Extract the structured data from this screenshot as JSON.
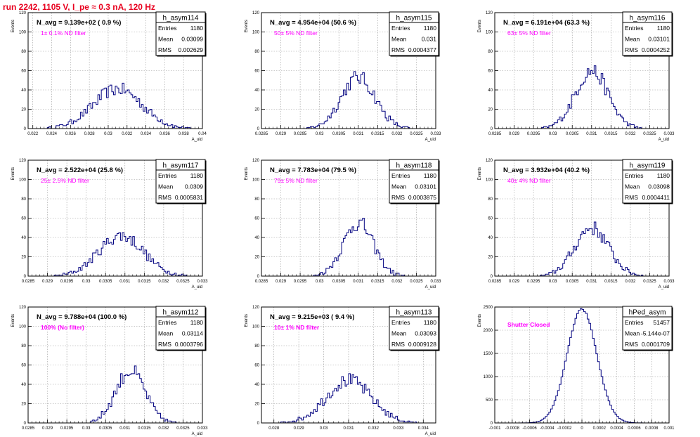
{
  "canvas_title": "run 2242,  1105 V, I_pe ≈ 0.3 nA, 120 Hz",
  "colors": {
    "hist": "#00007f",
    "magenta": "#ff00ff",
    "title": "#e8001e",
    "grid": "#9a9a9a"
  },
  "chart_data": [
    {
      "type": "bar",
      "hist_name": "h_asym114",
      "navg": "N_avg = 9.139e+02 ( 0.9 %)",
      "filter": "1± 0.1% ND filter",
      "stats": [
        [
          "Entries",
          "1180"
        ],
        [
          "Mean",
          "0.03099"
        ],
        [
          "RMS",
          "0.002629"
        ]
      ],
      "ylabel": "Events",
      "xlabel": "A_uid",
      "xlim": [
        0.0215,
        0.04
      ],
      "ylim": [
        0,
        120
      ],
      "xticks": [
        "0.022",
        "0.024",
        "0.026",
        "0.028",
        "0.03",
        "0.032",
        "0.034",
        "0.036",
        "0.038",
        "0.04"
      ],
      "yticks": [
        "0",
        "20",
        "40",
        "60",
        "80",
        "100",
        "120"
      ],
      "peak": {
        "mu": 0.031,
        "sigma": 0.0026,
        "max": 41
      }
    },
    {
      "type": "bar",
      "hist_name": "h_asym115",
      "navg": "N_avg = 4.954e+04 (50.6 %)",
      "filter": "50± 5% ND filter",
      "stats": [
        [
          "Entries",
          "1180"
        ],
        [
          "Mean",
          "0.031"
        ],
        [
          "RMS",
          "0.0004377"
        ]
      ],
      "ylabel": "Events",
      "xlabel": "A_uid",
      "xlim": [
        0.0285,
        0.033
      ],
      "ylim": [
        0,
        120
      ],
      "xticks": [
        "0.0285",
        "0.029",
        "0.0295",
        "0.03",
        "0.0305",
        "0.031",
        "0.0315",
        "0.032",
        "0.0325",
        "0.033"
      ],
      "yticks": [
        "0",
        "20",
        "40",
        "60",
        "80",
        "100",
        "120"
      ],
      "peak": {
        "mu": 0.031,
        "sigma": 0.00044,
        "max": 53
      }
    },
    {
      "type": "bar",
      "hist_name": "h_asym116",
      "navg": "N_avg = 6.191e+04 (63.3 %)",
      "filter": "63± 5% ND filter",
      "stats": [
        [
          "Entries",
          "1180"
        ],
        [
          "Mean",
          "0.03101"
        ],
        [
          "RMS",
          "0.0004252"
        ]
      ],
      "ylabel": "Events",
      "xlabel": "A_uid",
      "xlim": [
        0.0285,
        0.033
      ],
      "ylim": [
        0,
        120
      ],
      "xticks": [
        "0.0285",
        "0.029",
        "0.0295",
        "0.03",
        "0.0305",
        "0.031",
        "0.0315",
        "0.032",
        "0.0325",
        "0.033"
      ],
      "yticks": [
        "0",
        "20",
        "40",
        "60",
        "80",
        "100",
        "120"
      ],
      "peak": {
        "mu": 0.031,
        "sigma": 0.00042,
        "max": 60
      }
    },
    {
      "type": "bar",
      "hist_name": "h_asym117",
      "navg": "N_avg = 2.522e+04 (25.8 %)",
      "filter": "25± 2.5% ND filter",
      "stats": [
        [
          "Entries",
          "1180"
        ],
        [
          "Mean",
          "0.0309"
        ],
        [
          "RMS",
          "0.0005831"
        ]
      ],
      "ylabel": "Events",
      "xlabel": "A_uid",
      "xlim": [
        0.0285,
        0.033
      ],
      "ylim": [
        0,
        120
      ],
      "xticks": [
        "0.0285",
        "0.029",
        "0.0295",
        "0.03",
        "0.0305",
        "0.031",
        "0.0315",
        "0.032",
        "0.0325",
        "0.033"
      ],
      "yticks": [
        "0",
        "20",
        "40",
        "60",
        "80",
        "100",
        "120"
      ],
      "peak": {
        "mu": 0.0309,
        "sigma": 0.00058,
        "max": 42
      }
    },
    {
      "type": "bar",
      "hist_name": "h_asym118",
      "navg": "N_avg = 7.783e+04 (79.5 %)",
      "filter": "79± 5% ND filter",
      "stats": [
        [
          "Entries",
          "1180"
        ],
        [
          "Mean",
          "0.03101"
        ],
        [
          "RMS",
          "0.0003875"
        ]
      ],
      "ylabel": "Events",
      "xlabel": "A_uid",
      "xlim": [
        0.0285,
        0.033
      ],
      "ylim": [
        0,
        120
      ],
      "xticks": [
        "0.0285",
        "0.029",
        "0.0295",
        "0.03",
        "0.0305",
        "0.031",
        "0.0315",
        "0.032",
        "0.0325",
        "0.033"
      ],
      "yticks": [
        "0",
        "20",
        "40",
        "60",
        "80",
        "100",
        "120"
      ],
      "peak": {
        "mu": 0.031,
        "sigma": 0.00039,
        "max": 55
      }
    },
    {
      "type": "bar",
      "hist_name": "h_asym119",
      "navg": "N_avg = 3.932e+04 (40.2 %)",
      "filter": "40± 4% ND filter",
      "stats": [
        [
          "Entries",
          "1180"
        ],
        [
          "Mean",
          "0.03098"
        ],
        [
          "RMS",
          "0.0004411"
        ]
      ],
      "ylabel": "Events",
      "xlabel": "A_uid",
      "xlim": [
        0.0285,
        0.033
      ],
      "ylim": [
        0,
        120
      ],
      "xticks": [
        "0.0285",
        "0.029",
        "0.0295",
        "0.03",
        "0.0305",
        "0.031",
        "0.0315",
        "0.032",
        "0.0325",
        "0.033"
      ],
      "yticks": [
        "0",
        "20",
        "40",
        "60",
        "80",
        "100",
        "120"
      ],
      "peak": {
        "mu": 0.031,
        "sigma": 0.00044,
        "max": 50
      }
    },
    {
      "type": "bar",
      "hist_name": "h_asym112",
      "navg": "N_avg = 9.788e+04 (100.0 %)",
      "filter": "100% (No filter)",
      "stats": [
        [
          "Entries",
          "1180"
        ],
        [
          "Mean",
          "0.03114"
        ],
        [
          "RMS",
          "0.0003796"
        ]
      ],
      "ylabel": "Events",
      "xlabel": "A_uid",
      "xlim": [
        0.0285,
        0.033
      ],
      "ylim": [
        0,
        120
      ],
      "xticks": [
        "0.0285",
        "0.029",
        "0.0295",
        "0.03",
        "0.0305",
        "0.031",
        "0.0315",
        "0.032",
        "0.0325",
        "0.033"
      ],
      "yticks": [
        "0",
        "20",
        "40",
        "60",
        "80",
        "100",
        "120"
      ],
      "peak": {
        "mu": 0.03114,
        "sigma": 0.00038,
        "max": 54
      }
    },
    {
      "type": "bar",
      "hist_name": "h_asym113",
      "navg": "N_avg = 9.215e+03 ( 9.4 %)",
      "filter": "10± 1% ND filter",
      "stats": [
        [
          "Entries",
          "1180"
        ],
        [
          "Mean",
          "0.03093"
        ],
        [
          "RMS",
          "0.0009128"
        ]
      ],
      "ylabel": "Events",
      "xlabel": "A_uid",
      "xlim": [
        0.0275,
        0.0345
      ],
      "ylim": [
        0,
        120
      ],
      "xticks": [
        "0.028",
        "0.029",
        "0.03",
        "0.031",
        "0.032",
        "0.033",
        "0.034"
      ],
      "yticks": [
        "0",
        "20",
        "40",
        "60",
        "80",
        "100",
        "120"
      ],
      "peak": {
        "mu": 0.031,
        "sigma": 0.00091,
        "max": 44
      }
    },
    {
      "type": "bar",
      "hist_name": "hPed_asym",
      "navg": "",
      "filter": "Shutter Closed",
      "stats": [
        [
          "Entries",
          "51457"
        ],
        [
          "Mean",
          "-5.144e-07"
        ],
        [
          "RMS",
          "0.0001709"
        ]
      ],
      "ylabel": "Events",
      "xlabel": "",
      "xlim": [
        -0.001,
        0.001
      ],
      "ylim": [
        0,
        2500
      ],
      "xticks": [
        "-0.001",
        "-0.0008",
        "-0.0006",
        "-0.0004",
        "-0.0002",
        "0",
        "0.0002",
        "0.0004",
        "0.0006",
        "0.0008",
        "0.001"
      ],
      "yticks": [
        "0",
        "500",
        "1000",
        "1500",
        "2000",
        "2500"
      ],
      "peak": {
        "mu": 0.0,
        "sigma": 0.000171,
        "max": 2450
      }
    }
  ]
}
